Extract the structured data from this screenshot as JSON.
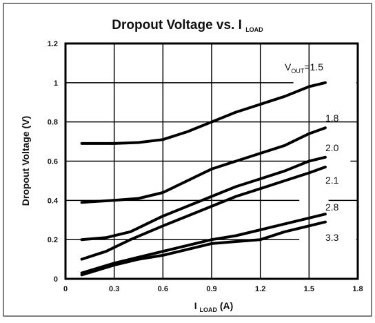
{
  "chart_data": {
    "type": "line",
    "title_main": "Dropout Voltage vs. I",
    "title_sub": "LOAD",
    "xlabel_main": "I",
    "xlabel_sub": "LOAD",
    "xlabel_unit": " (A)",
    "ylabel": "Dropout Voltage (V)",
    "xlim": [
      0,
      1.8
    ],
    "ylim": [
      0,
      1.2
    ],
    "x_ticks": [
      "0",
      "0.3",
      "0.6",
      "0.9",
      "1.2",
      "1.5",
      "1.8"
    ],
    "y_ticks": [
      "0",
      "0.2",
      "0.4",
      "0.6",
      "0.8",
      "1",
      "1.2"
    ],
    "grid": true,
    "series": [
      {
        "name": "1.5",
        "label_prefix": "V",
        "label_sub": "OUT",
        "label_main": "=1.5",
        "x": [
          0.1,
          0.3,
          0.45,
          0.6,
          0.75,
          0.9,
          1.05,
          1.2,
          1.35,
          1.5,
          1.6
        ],
        "y": [
          0.69,
          0.69,
          0.695,
          0.71,
          0.75,
          0.8,
          0.85,
          0.89,
          0.93,
          0.98,
          1.0
        ]
      },
      {
        "name": "1.8",
        "label_main": "1.8",
        "x": [
          0.1,
          0.3,
          0.45,
          0.6,
          0.75,
          0.9,
          1.05,
          1.2,
          1.35,
          1.5,
          1.6
        ],
        "y": [
          0.39,
          0.4,
          0.41,
          0.44,
          0.5,
          0.56,
          0.6,
          0.64,
          0.68,
          0.74,
          0.77
        ]
      },
      {
        "name": "2.0",
        "label_main": "2.0",
        "x": [
          0.1,
          0.25,
          0.4,
          0.6,
          0.75,
          0.9,
          1.05,
          1.2,
          1.35,
          1.5,
          1.6
        ],
        "y": [
          0.2,
          0.21,
          0.24,
          0.32,
          0.37,
          0.42,
          0.47,
          0.51,
          0.55,
          0.6,
          0.62
        ]
      },
      {
        "name": "2.1",
        "label_main": "2.1",
        "x": [
          0.1,
          0.25,
          0.4,
          0.6,
          0.75,
          0.9,
          1.05,
          1.2,
          1.35,
          1.5,
          1.6
        ],
        "y": [
          0.1,
          0.14,
          0.2,
          0.27,
          0.32,
          0.37,
          0.42,
          0.46,
          0.5,
          0.54,
          0.57
        ]
      },
      {
        "name": "2.8",
        "label_main": "2.8",
        "x": [
          0.1,
          0.3,
          0.45,
          0.6,
          0.75,
          0.9,
          1.05,
          1.2,
          1.35,
          1.5,
          1.6
        ],
        "y": [
          0.03,
          0.08,
          0.11,
          0.14,
          0.17,
          0.2,
          0.22,
          0.25,
          0.28,
          0.31,
          0.33
        ]
      },
      {
        "name": "3.3",
        "label_main": "3.3",
        "x": [
          0.1,
          0.3,
          0.45,
          0.6,
          0.75,
          0.9,
          1.05,
          1.2,
          1.35,
          1.5,
          1.6
        ],
        "y": [
          0.02,
          0.07,
          0.1,
          0.12,
          0.15,
          0.18,
          0.19,
          0.2,
          0.24,
          0.27,
          0.29
        ]
      }
    ]
  }
}
